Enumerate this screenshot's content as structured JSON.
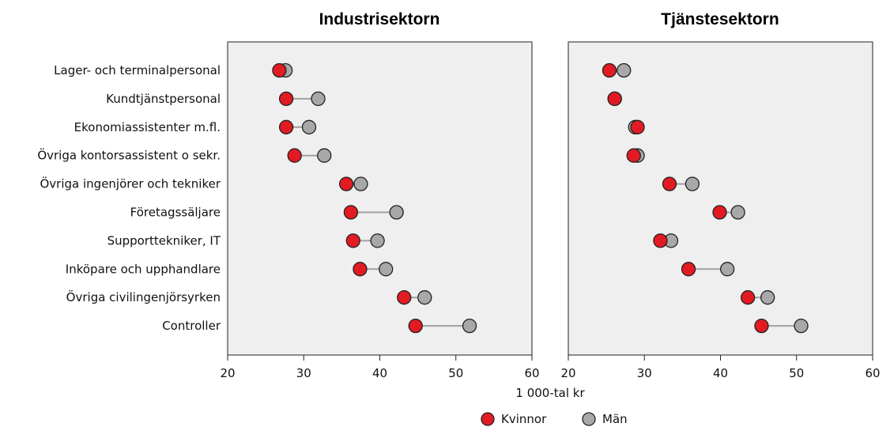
{
  "chart_data": {
    "type": "dumbbell",
    "xlabel": "1 000-tal kr",
    "xlim": [
      20,
      60
    ],
    "xticks": [
      20,
      30,
      40,
      50,
      60
    ],
    "categories": [
      "Lager- och terminalpersonal",
      "Kundtjänstpersonal",
      "Ekonomiassistenter m.fl.",
      "Övriga kontorsassistent o sekr.",
      "Övriga ingenjörer och tekniker",
      "Företagssäljare",
      "Supporttekniker, IT",
      "Inköpare och upphandlare",
      "Övriga civilingenjörsyrken",
      "Controller"
    ],
    "legend": {
      "placement": "bottom-center",
      "items": [
        {
          "name": "Kvinnor",
          "color": "#e21b23"
        },
        {
          "name": "Män",
          "color": "#a8a8a8"
        }
      ]
    },
    "panels": [
      {
        "title": "Industrisektorn",
        "series": [
          {
            "name": "Kvinnor",
            "values": [
              26.8,
              27.7,
              27.7,
              28.8,
              35.6,
              36.2,
              36.5,
              37.4,
              43.2,
              44.7
            ]
          },
          {
            "name": "Män",
            "values": [
              27.6,
              31.9,
              30.7,
              32.7,
              37.5,
              42.2,
              39.7,
              40.8,
              45.9,
              51.8
            ]
          }
        ]
      },
      {
        "title": "Tjänstesektorn",
        "series": [
          {
            "name": "Kvinnor",
            "values": [
              25.4,
              26.1,
              29.1,
              28.6,
              33.3,
              39.9,
              32.1,
              35.8,
              43.6,
              45.4
            ]
          },
          {
            "name": "Män",
            "values": [
              27.3,
              26.1,
              28.8,
              29.1,
              36.3,
              42.3,
              33.5,
              40.9,
              46.2,
              50.6
            ]
          }
        ]
      }
    ]
  }
}
